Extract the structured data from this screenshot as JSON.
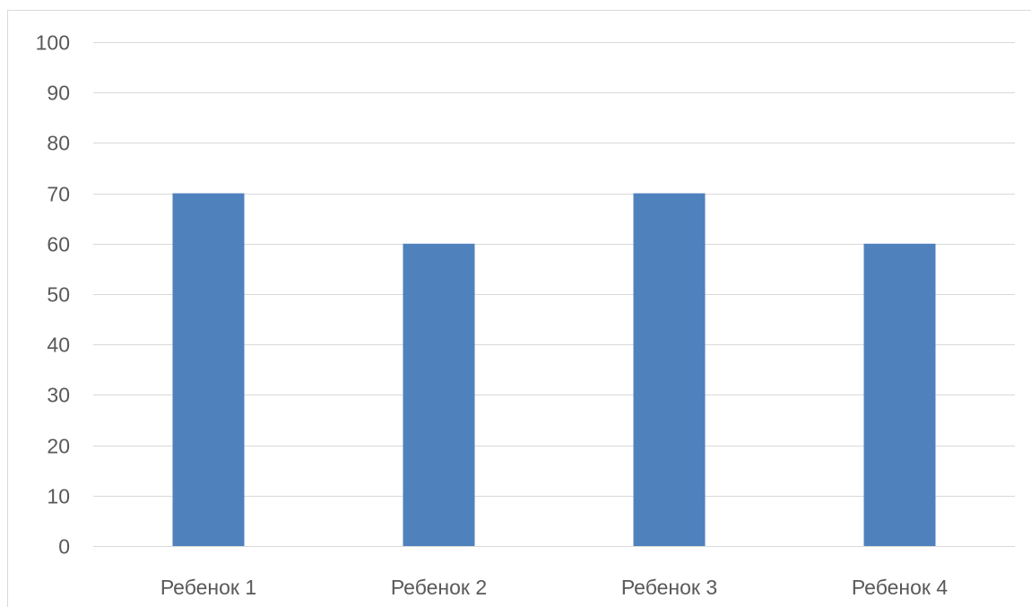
{
  "chart_data": {
    "type": "bar",
    "categories": [
      "Ребенок 1",
      "Ребенок 2",
      "Ребенок 3",
      "Ребенок 4"
    ],
    "values": [
      70,
      60,
      70,
      60
    ],
    "ylim": [
      0,
      100
    ],
    "yticks": [
      0,
      10,
      20,
      30,
      40,
      50,
      60,
      70,
      80,
      90,
      100
    ],
    "grid": true,
    "legend": "none",
    "colors": {
      "bar": "#4f81bd",
      "grid": "#d9d9d9",
      "text": "#595959"
    }
  }
}
